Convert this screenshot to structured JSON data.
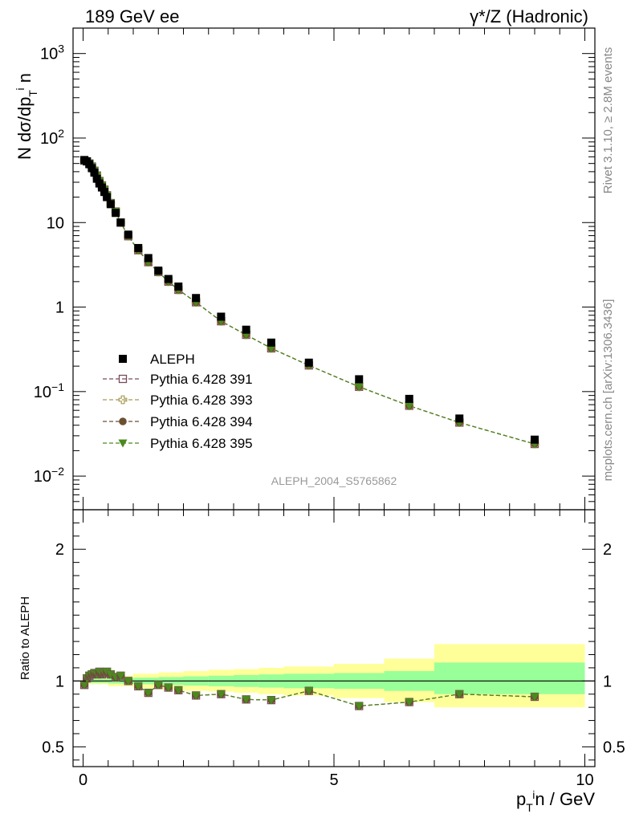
{
  "header": {
    "left": "189 GeV ee",
    "right": "γ*/Z (Hadronic)"
  },
  "side_labels": {
    "top": "Rivet 3.1.10, ≥ 2.8M events",
    "bottom": "mcplots.cern.ch [arXiv:1306.3436]"
  },
  "analysis_tag": "ALEPH_2004_S5765862",
  "colors": {
    "aleph": "#000000",
    "p391": "#7b4a5a",
    "p393": "#a89a55",
    "p394": "#6b5030",
    "p395": "#4a8a1e",
    "band_green": "#99ff99",
    "band_yellow": "#ffff99"
  },
  "chart_data": [
    {
      "type": "scatter",
      "panel": "main",
      "ylabel": "N dσ/dp_T^i n",
      "yscale": "log",
      "ylim": [
        0.004,
        2000
      ],
      "xlim": [
        -0.2,
        10.2
      ],
      "yticks": [
        "10^-2",
        "10^-1",
        "1",
        "10",
        "10^2",
        "10^3"
      ],
      "legend_position": "middle-left",
      "x": [
        0.025,
        0.075,
        0.125,
        0.175,
        0.225,
        0.275,
        0.325,
        0.375,
        0.425,
        0.475,
        0.55,
        0.65,
        0.75,
        0.9,
        1.1,
        1.3,
        1.5,
        1.7,
        1.9,
        2.25,
        2.75,
        3.25,
        3.75,
        4.5,
        5.5,
        6.5,
        7.5,
        9.0
      ],
      "series": [
        {
          "name": "ALEPH",
          "marker": "square-filled",
          "values": [
            55,
            53,
            49,
            44,
            39,
            33,
            29,
            26,
            23,
            20,
            16.5,
            13.0,
            10.0,
            7.2,
            5.0,
            3.8,
            2.7,
            2.15,
            1.75,
            1.28,
            0.77,
            0.54,
            0.38,
            0.22,
            0.14,
            0.082,
            0.048,
            0.027
          ]
        },
        {
          "name": "Pythia 6.428 391",
          "marker": "square-open",
          "values": [
            54,
            53,
            50,
            46,
            41,
            36,
            31,
            27.5,
            24.5,
            21,
            17.0,
            13.5,
            10.0,
            6.9,
            4.7,
            3.4,
            2.6,
            2.0,
            1.6,
            1.14,
            0.68,
            0.47,
            0.325,
            0.204,
            0.114,
            0.068,
            0.043,
            0.024
          ]
        },
        {
          "name": "Pythia 6.428 393",
          "marker": "cross-open",
          "values": [
            54,
            53,
            50,
            46,
            41,
            36,
            31,
            27.5,
            24.5,
            21,
            17.0,
            13.5,
            10.0,
            6.9,
            4.7,
            3.4,
            2.6,
            2.0,
            1.6,
            1.14,
            0.68,
            0.47,
            0.325,
            0.204,
            0.114,
            0.068,
            0.043,
            0.024
          ]
        },
        {
          "name": "Pythia 6.428 394",
          "marker": "circle-filled",
          "values": [
            54,
            53,
            50,
            46,
            41,
            36,
            31,
            27.5,
            24.5,
            21,
            17.0,
            13.5,
            10.0,
            6.9,
            4.7,
            3.4,
            2.6,
            2.0,
            1.6,
            1.14,
            0.68,
            0.47,
            0.325,
            0.204,
            0.114,
            0.068,
            0.043,
            0.024
          ]
        },
        {
          "name": "Pythia 6.428 395",
          "marker": "triangle-down-filled",
          "values": [
            54,
            53,
            50,
            46,
            41,
            36,
            31,
            27.5,
            24.5,
            21,
            17.0,
            13.5,
            10.0,
            6.9,
            4.7,
            3.4,
            2.6,
            2.0,
            1.6,
            1.14,
            0.68,
            0.47,
            0.325,
            0.204,
            0.114,
            0.068,
            0.043,
            0.024
          ]
        }
      ]
    },
    {
      "type": "scatter",
      "panel": "ratio",
      "ylabel": "Ratio to ALEPH",
      "xlabel": "p_T^i n / GeV",
      "ylim": [
        0.35,
        2.3
      ],
      "xlim": [
        -0.2,
        10.2
      ],
      "yticks": [
        0.5,
        1,
        2
      ],
      "xticks": [
        0,
        5,
        10
      ],
      "x": [
        0.025,
        0.075,
        0.125,
        0.175,
        0.225,
        0.275,
        0.325,
        0.375,
        0.425,
        0.475,
        0.55,
        0.65,
        0.75,
        0.9,
        1.1,
        1.3,
        1.5,
        1.7,
        1.9,
        2.25,
        2.75,
        3.25,
        3.75,
        4.5,
        5.5,
        6.5,
        7.5,
        9.0
      ],
      "ratio": [
        0.97,
        1.02,
        1.04,
        1.05,
        1.06,
        1.05,
        1.07,
        1.05,
        1.06,
        1.07,
        1.05,
        1.03,
        1.04,
        1.0,
        0.96,
        0.91,
        0.97,
        0.95,
        0.93,
        0.89,
        0.9,
        0.86,
        0.855,
        0.925,
        0.81,
        0.84,
        0.9,
        0.88
      ],
      "band_edges": [
        0.0,
        0.5,
        1.0,
        1.5,
        2.0,
        2.5,
        3.0,
        3.5,
        4.0,
        5.0,
        6.0,
        7.0,
        10.0
      ],
      "band_green": [
        [
          0.985,
          1.015
        ],
        [
          0.98,
          1.02
        ],
        [
          0.975,
          1.025
        ],
        [
          0.97,
          1.03
        ],
        [
          0.965,
          1.035
        ],
        [
          0.96,
          1.04
        ],
        [
          0.955,
          1.045
        ],
        [
          0.95,
          1.05
        ],
        [
          0.945,
          1.055
        ],
        [
          0.94,
          1.06
        ],
        [
          0.925,
          1.075
        ],
        [
          0.9,
          1.14
        ]
      ],
      "band_yellow": [
        [
          0.975,
          1.025
        ],
        [
          0.96,
          1.04
        ],
        [
          0.945,
          1.055
        ],
        [
          0.935,
          1.065
        ],
        [
          0.925,
          1.075
        ],
        [
          0.92,
          1.085
        ],
        [
          0.91,
          1.09
        ],
        [
          0.9,
          1.1
        ],
        [
          0.89,
          1.11
        ],
        [
          0.87,
          1.13
        ],
        [
          0.84,
          1.17
        ],
        [
          0.8,
          1.28
        ]
      ]
    }
  ]
}
